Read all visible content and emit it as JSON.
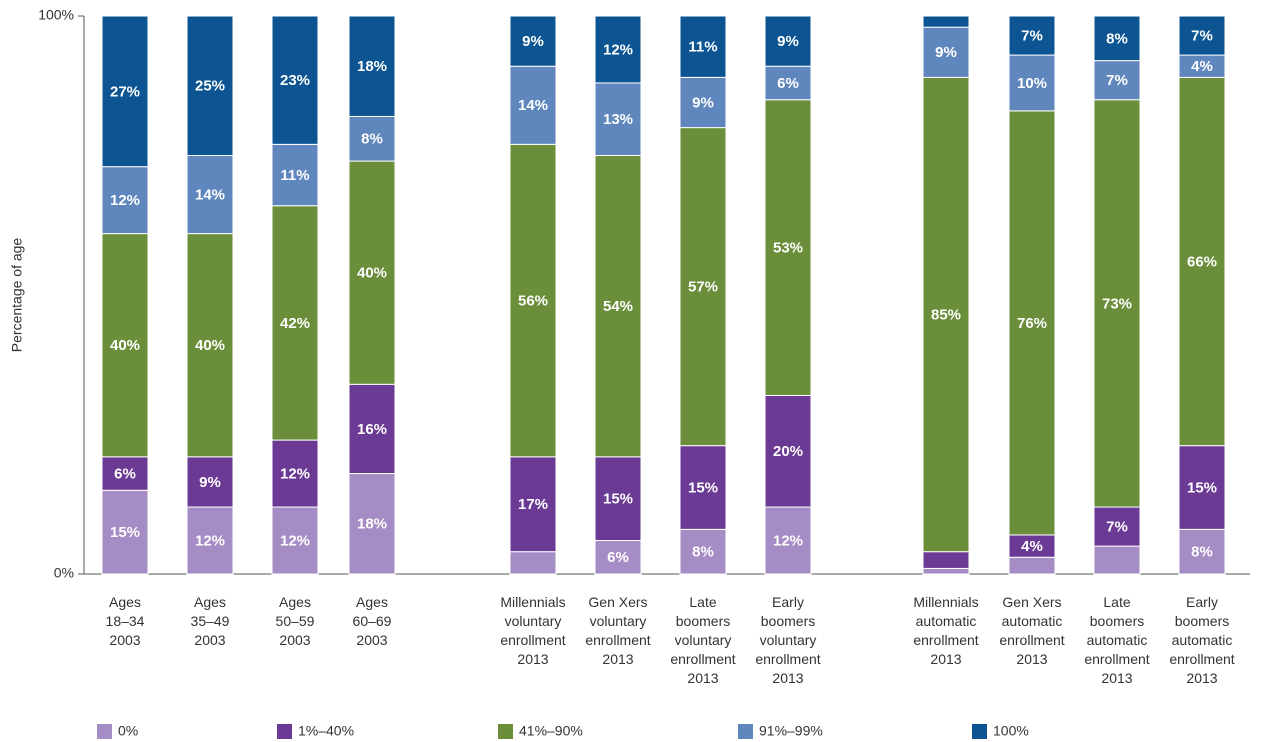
{
  "chart_data": {
    "type": "stacked_bar",
    "y_label": "Percentage of age",
    "ylim": [
      0,
      100
    ],
    "yticks": [
      {
        "value": 0,
        "label": "0%"
      },
      {
        "value": 100,
        "label": "100%"
      }
    ],
    "grid": false,
    "legend": "bottom",
    "categories": [
      [
        "Ages",
        "18–34",
        "2003"
      ],
      [
        "Ages",
        "35–49",
        "2003"
      ],
      [
        "Ages",
        "50–59",
        "2003"
      ],
      [
        "Ages",
        "60–69",
        "2003"
      ],
      [
        "Millennials",
        "voluntary",
        "enrollment",
        "2013"
      ],
      [
        "Gen Xers",
        "voluntary",
        "enrollment",
        "2013"
      ],
      [
        "Late",
        "boomers",
        "voluntary",
        "enrollment",
        "2013"
      ],
      [
        "Early",
        "boomers",
        "voluntary",
        "enrollment",
        "2013"
      ],
      [
        "Millennials",
        "automatic",
        "enrollment",
        "2013"
      ],
      [
        "Gen Xers",
        "automatic",
        "enrollment",
        "2013"
      ],
      [
        "Late",
        "boomers",
        "automatic",
        "enrollment",
        "2013"
      ],
      [
        "Early",
        "boomers",
        "automatic",
        "enrollment",
        "2013"
      ]
    ],
    "series": [
      {
        "name": "0%",
        "color": "#a58cc4",
        "values": [
          15,
          12,
          12,
          18,
          4,
          6,
          8,
          12,
          1,
          3,
          5,
          8
        ],
        "value_labels": [
          "15%",
          "12%",
          "12%",
          "18%",
          null,
          "6%",
          "8%",
          "12%",
          null,
          null,
          null,
          "8%"
        ]
      },
      {
        "name": "1%–40%",
        "color": "#6b3a94",
        "values": [
          6,
          9,
          12,
          16,
          17,
          15,
          15,
          20,
          3,
          4,
          7,
          15
        ],
        "value_labels": [
          "6%",
          "9%",
          "12%",
          "16%",
          "17%",
          "15%",
          "15%",
          "20%",
          null,
          "4%",
          "7%",
          "15%"
        ]
      },
      {
        "name": "41%–90%",
        "color": "#6a8e3a",
        "values": [
          40,
          40,
          42,
          40,
          56,
          54,
          57,
          53,
          85,
          76,
          73,
          66
        ],
        "value_labels": [
          "40%",
          "40%",
          "42%",
          "40%",
          "56%",
          "54%",
          "57%",
          "53%",
          "85%",
          "76%",
          "73%",
          "66%"
        ]
      },
      {
        "name": "91%–99%",
        "color": "#5f87bd",
        "values": [
          12,
          14,
          11,
          8,
          14,
          13,
          9,
          6,
          9,
          10,
          7,
          4
        ],
        "value_labels": [
          "12%",
          "14%",
          "11%",
          "8%",
          "14%",
          "13%",
          "9%",
          "6%",
          "9%",
          "10%",
          "7%",
          "4%"
        ]
      },
      {
        "name": "100%",
        "color": "#0c5592",
        "values": [
          27,
          25,
          23,
          18,
          9,
          12,
          11,
          9,
          2,
          7,
          8,
          7
        ],
        "value_labels": [
          "27%",
          "25%",
          "23%",
          "18%",
          "9%",
          "12%",
          "11%",
          "9%",
          null,
          "7%",
          "8%",
          "7%"
        ]
      }
    ]
  }
}
